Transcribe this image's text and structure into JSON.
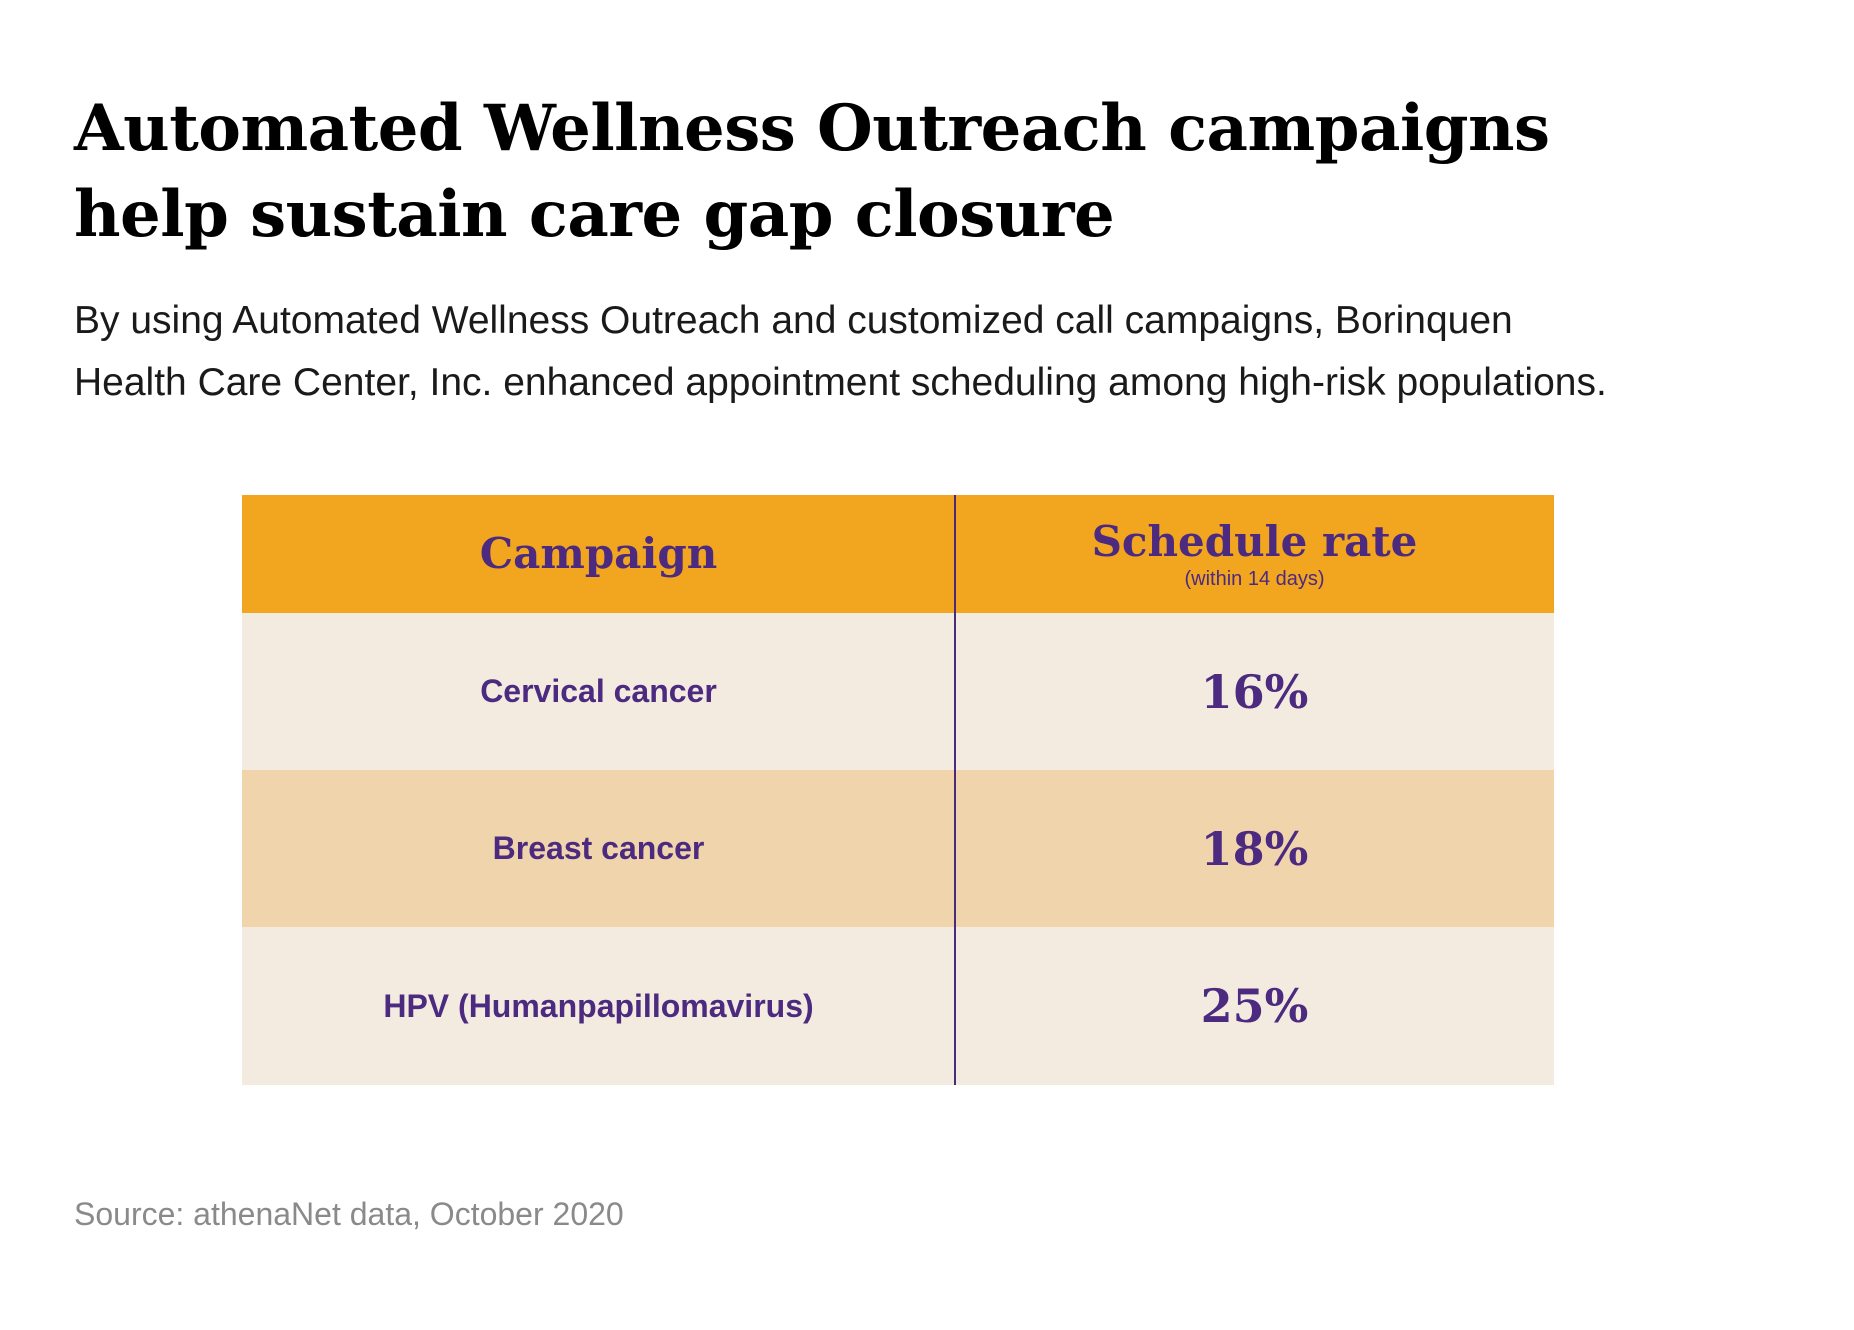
{
  "title_lines": [
    "Automated Wellness Outreach campaigns",
    "help sustain care gap closure"
  ],
  "subtitle_lines": [
    "By using Automated Wellness Outreach and customized call campaigns, Borinquen",
    "Health Care Center, Inc. enhanced appointment scheduling among high-risk populations."
  ],
  "source": "Source: athenaNet data, October 2020",
  "colors": {
    "header_bg": "#f2a51f",
    "row_light": "#f3ebdf",
    "row_dark": "#f0d4ab",
    "text_purple": "#4b2a80",
    "source_gray": "#8a8a8a"
  },
  "chart_data": {
    "type": "table",
    "title": "Automated Wellness Outreach campaigns help sustain care gap closure",
    "columns": [
      {
        "label": "Campaign",
        "sublabel": ""
      },
      {
        "label": "Schedule rate",
        "sublabel": "(within 14 days)"
      }
    ],
    "rows": [
      {
        "campaign": "Cervical cancer",
        "rate": "16%",
        "value": 16
      },
      {
        "campaign": "Breast cancer",
        "rate": "18%",
        "value": 18
      },
      {
        "campaign": "HPV (Humanpapillomavirus)",
        "rate": "25%",
        "value": 25
      }
    ]
  }
}
